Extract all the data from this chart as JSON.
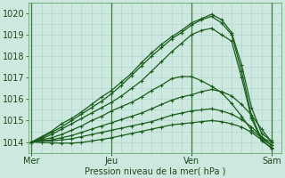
{
  "background_color": "#cce8df",
  "grid_color_v": "#aad4cc",
  "grid_color_h": "#aad4cc",
  "line_color": "#1a5c1a",
  "ylabel": "Pression niveau de la mer( hPa )",
  "xtick_labels": [
    "Mer",
    "Jeu",
    "Ven",
    "Sam"
  ],
  "xtick_positions": [
    0,
    48,
    96,
    144
  ],
  "ylim": [
    1013.5,
    1020.5
  ],
  "yticks": [
    1014,
    1015,
    1016,
    1017,
    1018,
    1019,
    1020
  ],
  "xlim": [
    -2,
    150
  ],
  "lines": [
    {
      "x": [
        0,
        6,
        12,
        18,
        24,
        30,
        36,
        42,
        48,
        54,
        60,
        66,
        72,
        78,
        84,
        90,
        96,
        102,
        108,
        114,
        120,
        126,
        132,
        138,
        144
      ],
      "y": [
        1014.0,
        1014.25,
        1014.5,
        1014.85,
        1015.1,
        1015.4,
        1015.75,
        1016.1,
        1016.4,
        1016.8,
        1017.2,
        1017.7,
        1018.15,
        1018.55,
        1018.9,
        1019.2,
        1019.55,
        1019.75,
        1019.95,
        1019.7,
        1019.1,
        1017.6,
        1015.6,
        1014.4,
        1014.05
      ]
    },
    {
      "x": [
        0,
        6,
        12,
        18,
        24,
        30,
        36,
        42,
        48,
        54,
        60,
        66,
        72,
        78,
        84,
        90,
        96,
        102,
        108,
        114,
        120,
        126,
        132,
        138,
        144
      ],
      "y": [
        1014.0,
        1014.2,
        1014.45,
        1014.7,
        1015.0,
        1015.3,
        1015.6,
        1015.9,
        1016.25,
        1016.65,
        1017.1,
        1017.55,
        1018.0,
        1018.4,
        1018.8,
        1019.1,
        1019.45,
        1019.7,
        1019.85,
        1019.55,
        1019.0,
        1017.3,
        1015.2,
        1014.15,
        1013.85
      ]
    },
    {
      "x": [
        0,
        6,
        12,
        18,
        24,
        30,
        36,
        42,
        48,
        54,
        60,
        66,
        72,
        78,
        84,
        90,
        96,
        102,
        108,
        114,
        120,
        126,
        132,
        138,
        144
      ],
      "y": [
        1014.0,
        1014.15,
        1014.35,
        1014.6,
        1014.85,
        1015.1,
        1015.35,
        1015.6,
        1015.85,
        1016.15,
        1016.5,
        1016.85,
        1017.3,
        1017.75,
        1018.2,
        1018.6,
        1019.0,
        1019.2,
        1019.3,
        1019.0,
        1018.7,
        1017.0,
        1015.1,
        1014.05,
        1013.75
      ]
    },
    {
      "x": [
        0,
        6,
        12,
        18,
        24,
        30,
        36,
        42,
        48,
        54,
        60,
        66,
        72,
        78,
        84,
        90,
        96,
        102,
        108,
        114,
        120,
        126,
        132,
        138,
        144
      ],
      "y": [
        1014.0,
        1014.1,
        1014.2,
        1014.35,
        1014.55,
        1014.75,
        1015.0,
        1015.2,
        1015.45,
        1015.65,
        1015.85,
        1016.1,
        1016.4,
        1016.65,
        1016.95,
        1017.05,
        1017.05,
        1016.85,
        1016.6,
        1016.3,
        1015.8,
        1015.2,
        1014.55,
        1014.2,
        1014.0
      ]
    },
    {
      "x": [
        0,
        6,
        12,
        18,
        24,
        30,
        36,
        42,
        48,
        54,
        60,
        66,
        72,
        78,
        84,
        90,
        96,
        102,
        108,
        114,
        120,
        126,
        132,
        138,
        144
      ],
      "y": [
        1014.0,
        1014.05,
        1014.1,
        1014.2,
        1014.3,
        1014.45,
        1014.6,
        1014.75,
        1014.9,
        1015.05,
        1015.2,
        1015.35,
        1015.55,
        1015.75,
        1015.95,
        1016.1,
        1016.2,
        1016.35,
        1016.45,
        1016.35,
        1016.15,
        1015.75,
        1015.25,
        1014.6,
        1014.0
      ]
    },
    {
      "x": [
        0,
        6,
        12,
        18,
        24,
        30,
        36,
        42,
        48,
        54,
        60,
        66,
        72,
        78,
        84,
        90,
        96,
        102,
        108,
        114,
        120,
        126,
        132,
        138,
        144
      ],
      "y": [
        1014.0,
        1014.05,
        1014.05,
        1014.1,
        1014.15,
        1014.25,
        1014.35,
        1014.45,
        1014.55,
        1014.65,
        1014.75,
        1014.85,
        1014.95,
        1015.1,
        1015.25,
        1015.35,
        1015.45,
        1015.5,
        1015.55,
        1015.45,
        1015.3,
        1015.05,
        1014.7,
        1014.25,
        1013.85
      ]
    },
    {
      "x": [
        0,
        6,
        12,
        18,
        24,
        30,
        36,
        42,
        48,
        54,
        60,
        66,
        72,
        78,
        84,
        90,
        96,
        102,
        108,
        114,
        120,
        126,
        132,
        138,
        144
      ],
      "y": [
        1014.0,
        1013.98,
        1013.96,
        1013.95,
        1013.95,
        1013.98,
        1014.05,
        1014.12,
        1014.2,
        1014.3,
        1014.4,
        1014.5,
        1014.6,
        1014.7,
        1014.8,
        1014.85,
        1014.9,
        1014.95,
        1015.0,
        1014.95,
        1014.85,
        1014.7,
        1014.45,
        1014.1,
        1013.7
      ]
    }
  ],
  "day_vline_color": "#3a7a3a",
  "day_vline_positions": [
    0,
    48,
    96,
    144
  ]
}
